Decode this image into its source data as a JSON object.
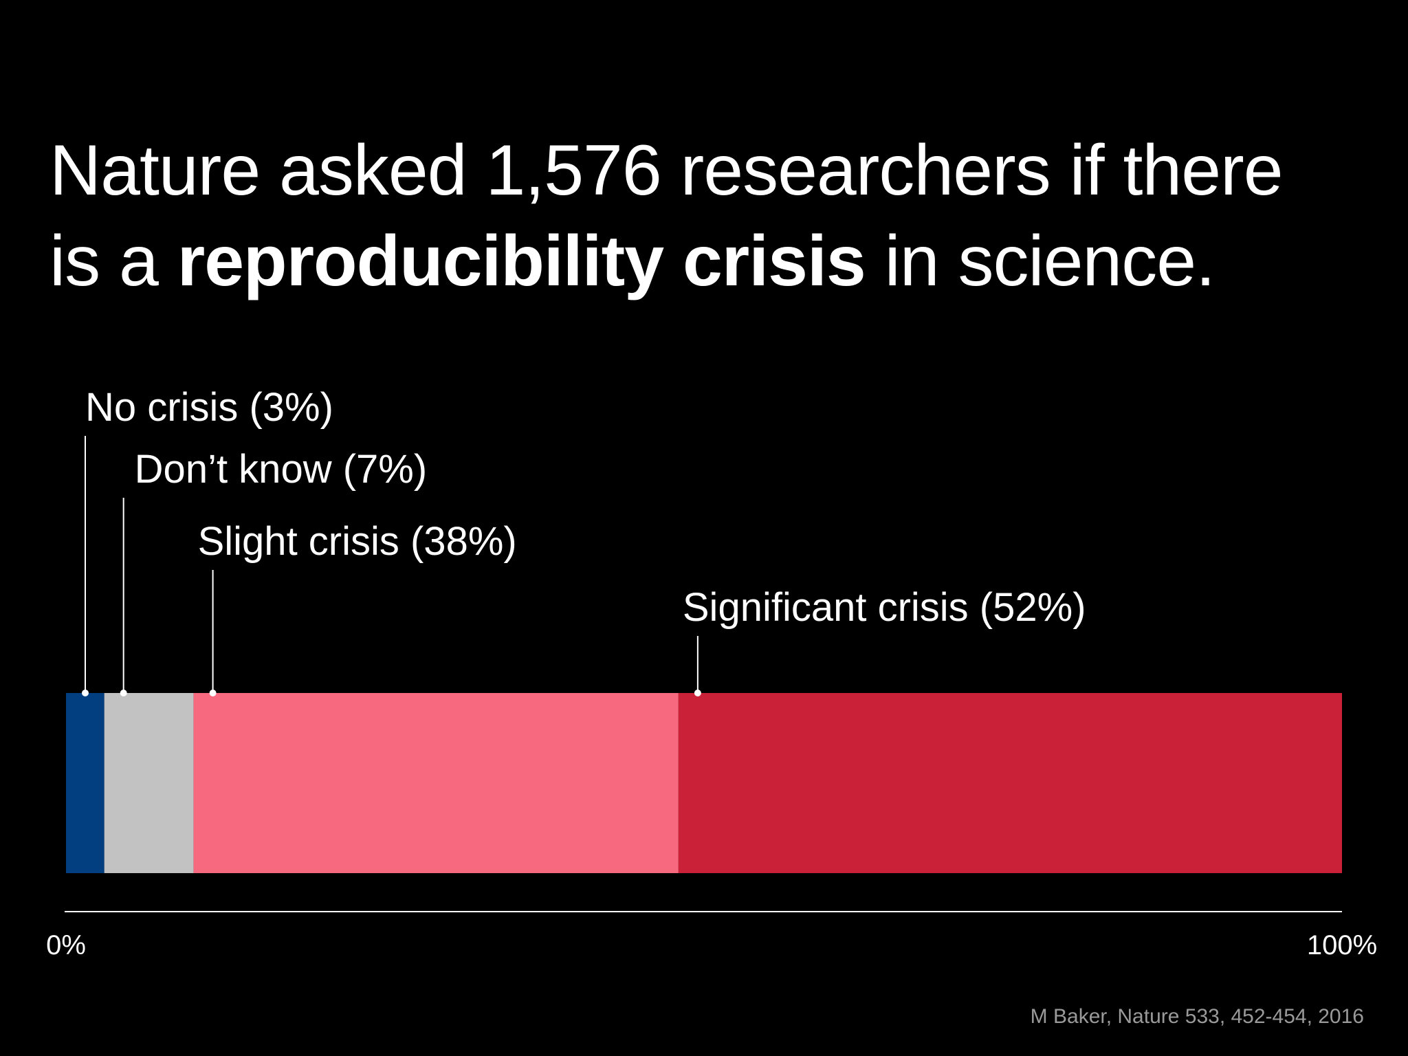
{
  "headline": {
    "prefix": "Nature asked 1,576 researchers if there",
    "line2_start": "is a ",
    "emphasis": "reproducibility crisis",
    "line2_end": " in science."
  },
  "chart_data": {
    "type": "bar",
    "orientation": "horizontal-stacked",
    "categories": [
      "No crisis",
      "Don’t know",
      "Slight crisis",
      "Significant crisis"
    ],
    "values": [
      3,
      7,
      38,
      52
    ],
    "unit": "%",
    "labels": [
      "No crisis (3%)",
      "Don’t know (7%)",
      "Slight crisis (38%)",
      "Significant crisis (52%)"
    ],
    "colors": [
      "#013F80",
      "#C2C2C2",
      "#F7697E",
      "#CA2139"
    ],
    "xlim": [
      0,
      100
    ],
    "ticks": [
      "0%",
      "100%"
    ],
    "grid": false
  },
  "source": "M Baker, Nature 533, 452-454, 2016"
}
